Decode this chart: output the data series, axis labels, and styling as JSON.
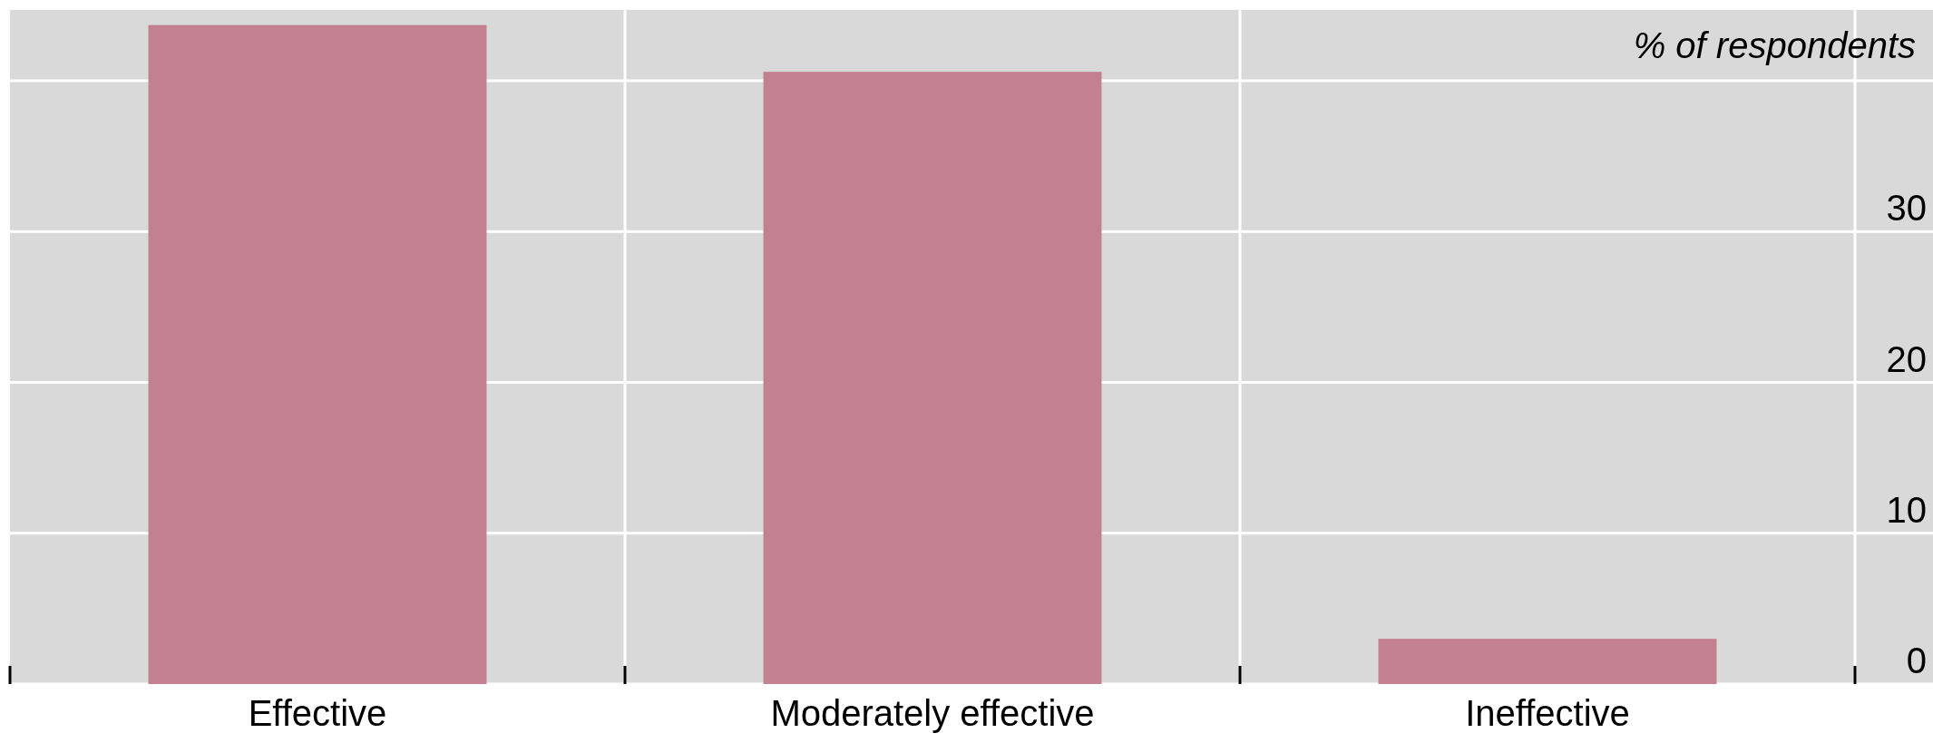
{
  "chart_data": {
    "type": "bar",
    "ylabel": "% of respondents",
    "categories": [
      "Effective",
      "Moderately effective",
      "Ineffective"
    ],
    "series": [
      {
        "color": "#c38090",
        "values": [
          43.7,
          40.6,
          3.0
        ]
      }
    ],
    "ylim": [
      0,
      44.7
    ],
    "yticks": [
      0,
      10,
      20,
      30,
      {
        "value": 40,
        "label": null
      }
    ],
    "grid": true
  }
}
